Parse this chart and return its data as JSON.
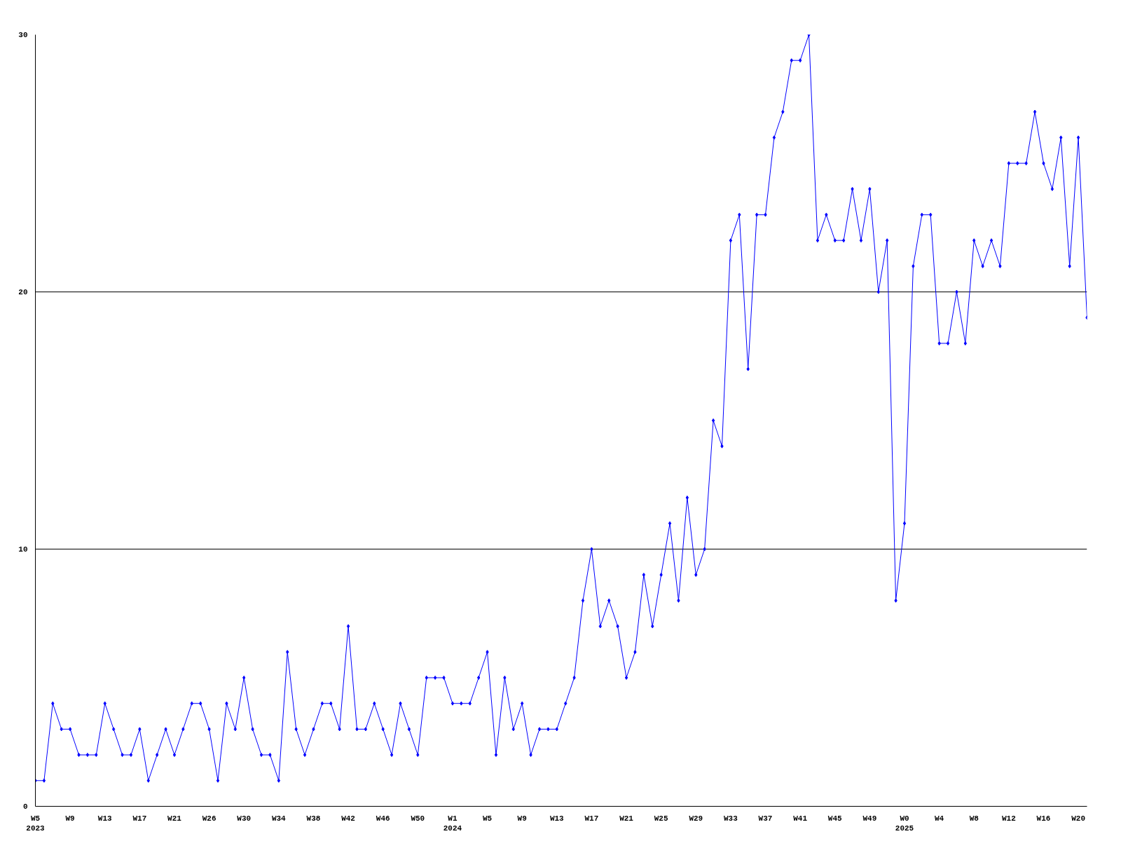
{
  "chart_data": {
    "type": "line",
    "categories": [
      "W5\n2023",
      null,
      null,
      null,
      "W9",
      null,
      null,
      null,
      "W13",
      null,
      null,
      null,
      "W17",
      null,
      null,
      null,
      "W21",
      null,
      null,
      null,
      "W26",
      null,
      null,
      null,
      "W30",
      null,
      null,
      null,
      "W34",
      null,
      null,
      null,
      "W38",
      null,
      null,
      null,
      "W42",
      null,
      null,
      null,
      "W46",
      null,
      null,
      null,
      "W50",
      null,
      null,
      null,
      "W1\n2024",
      null,
      null,
      null,
      "W5",
      null,
      null,
      null,
      "W9",
      null,
      null,
      null,
      "W13",
      null,
      null,
      null,
      "W17",
      null,
      null,
      null,
      "W21",
      null,
      null,
      null,
      "W25",
      null,
      null,
      null,
      "W29",
      null,
      null,
      null,
      "W33",
      null,
      null,
      null,
      "W37",
      null,
      null,
      null,
      "W41",
      null,
      null,
      null,
      "W45",
      null,
      null,
      null,
      "W49",
      null,
      null,
      null,
      "W0\n2025",
      null,
      null,
      null,
      "W4",
      null,
      null,
      null,
      "W8",
      null,
      null,
      null,
      "W12",
      null,
      null,
      null,
      "W16",
      null,
      null,
      null,
      "W20",
      null
    ],
    "series": [
      {
        "color": "#0000ff",
        "values": [
          1,
          1,
          4,
          3,
          3,
          2,
          2,
          2,
          4,
          3,
          2,
          2,
          3,
          1,
          2,
          3,
          2,
          3,
          4,
          4,
          3,
          1,
          4,
          3,
          5,
          3,
          2,
          2,
          1,
          6,
          3,
          2,
          3,
          4,
          4,
          3,
          7,
          3,
          3,
          4,
          3,
          2,
          4,
          3,
          2,
          5,
          5,
          5,
          4,
          4,
          4,
          5,
          6,
          2,
          5,
          3,
          4,
          2,
          3,
          3,
          3,
          4,
          5,
          8,
          10,
          7,
          8,
          7,
          5,
          6,
          9,
          7,
          9,
          11,
          8,
          12,
          9,
          10,
          15,
          14,
          22,
          23,
          17,
          23,
          23,
          26,
          27,
          29,
          29,
          30,
          22,
          23,
          22,
          22,
          24,
          22,
          24,
          20,
          22,
          8,
          11,
          21,
          23,
          23,
          18,
          18,
          20,
          18,
          22,
          21,
          22,
          21,
          25,
          25,
          25,
          27,
          25,
          24,
          26,
          21,
          26,
          19
        ]
      }
    ],
    "ylim": [
      0,
      30
    ],
    "yticks": [
      0,
      10,
      20,
      30
    ],
    "grid": "y",
    "marker": "diamond"
  }
}
